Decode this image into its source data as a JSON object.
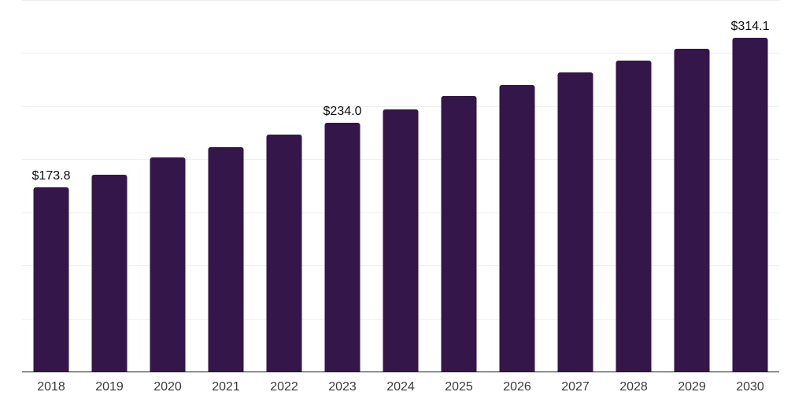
{
  "chart_data": {
    "type": "bar",
    "title": "",
    "xlabel": "",
    "ylabel": "",
    "categories": [
      "2018",
      "2019",
      "2020",
      "2021",
      "2022",
      "2023",
      "2024",
      "2025",
      "2026",
      "2027",
      "2028",
      "2029",
      "2030"
    ],
    "values": [
      173.8,
      185.2,
      201.4,
      211.7,
      223.0,
      234.0,
      247.1,
      259.3,
      270.2,
      282.1,
      292.8,
      304.1,
      314.1
    ],
    "value_labels": {
      "2018": "$173.8",
      "2023": "$234.0",
      "2030": "$314.1"
    },
    "ylim": [
      0,
      350
    ],
    "gridline_step": 50,
    "grid": "horizontal",
    "legend_position": "none",
    "colors": {
      "bar": "#35164A",
      "gridline": "#efefef",
      "axis": "#1a1a1a",
      "value_label": "#0d0d0d",
      "tick_label": "#3a3a3a",
      "background": "#ffffff"
    }
  }
}
